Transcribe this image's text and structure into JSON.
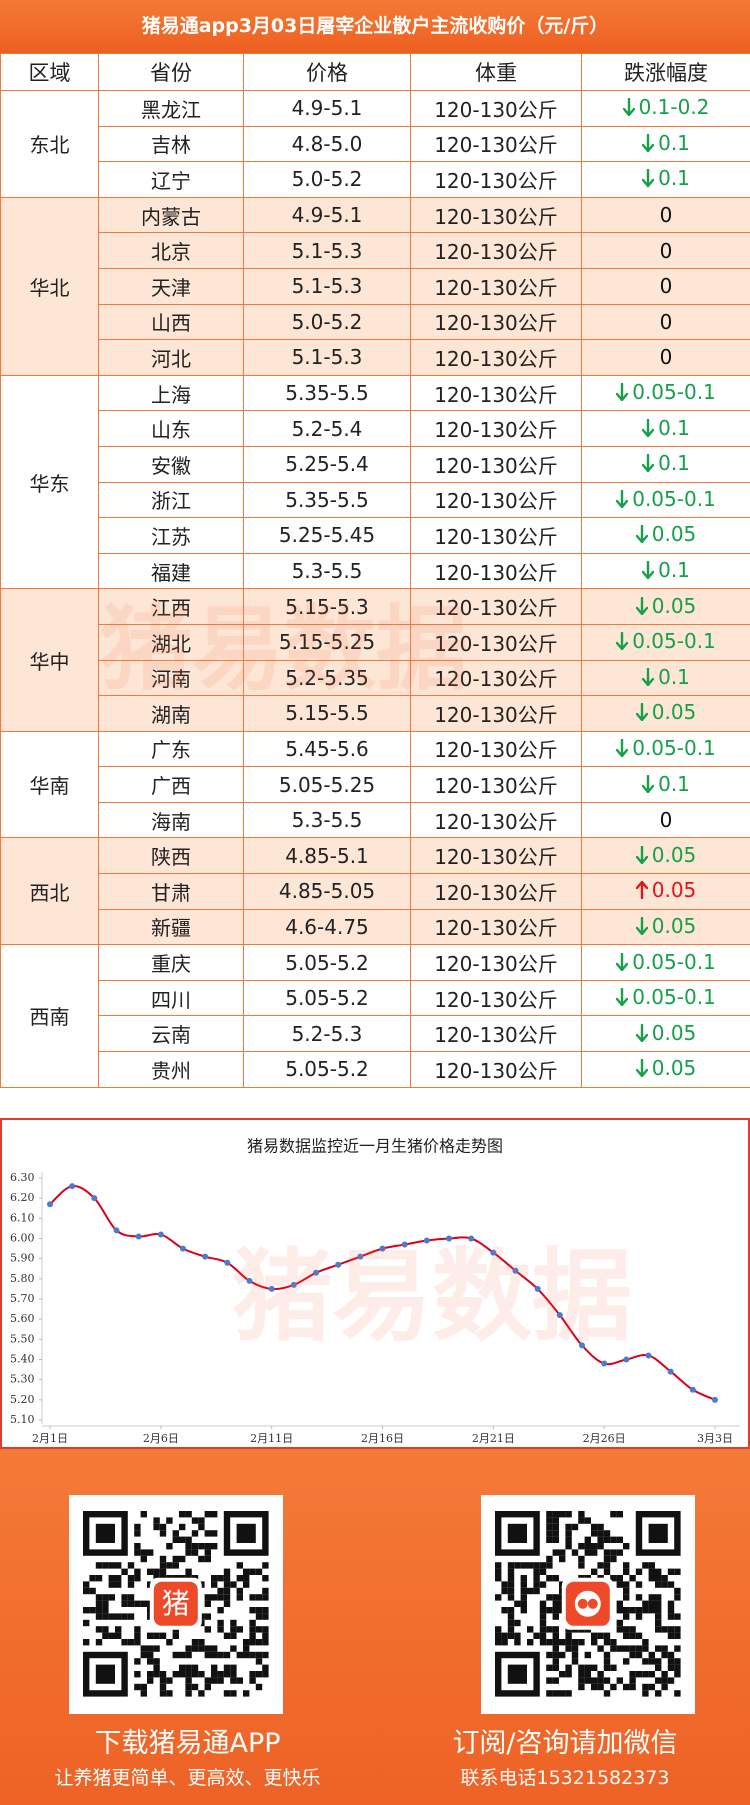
{
  "header": {
    "title": "猪易通app3月03日屠宰企业散户主流收购价（元/斤）"
  },
  "table": {
    "header": [
      "区域",
      "省份",
      "价格",
      "体重",
      "跌涨幅度"
    ],
    "regions": [
      {
        "name": "东北",
        "rows": [
          {
            "province": "黑龙江",
            "price": "4.9-5.1",
            "weight": "120-130公斤",
            "change": "0.1-0.2",
            "trend": "down"
          },
          {
            "province": "吉林",
            "price": "4.8-5.0",
            "weight": "120-130公斤",
            "change": "0.1",
            "trend": "down"
          },
          {
            "province": "辽宁",
            "price": "5.0-5.2",
            "weight": "120-130公斤",
            "change": "0.1",
            "trend": "down"
          }
        ]
      },
      {
        "name": "华北",
        "rows": [
          {
            "province": "内蒙古",
            "price": "4.9-5.1",
            "weight": "120-130公斤",
            "change": "0"
          },
          {
            "province": "北京",
            "price": "5.1-5.3",
            "weight": "120-130公斤",
            "change": "0"
          },
          {
            "province": "天津",
            "price": "5.1-5.3",
            "weight": "120-130公斤",
            "change": "0"
          },
          {
            "province": "山西",
            "price": "5.0-5.2",
            "weight": "120-130公斤",
            "change": "0"
          },
          {
            "province": "河北",
            "price": "5.1-5.3",
            "weight": "120-130公斤",
            "change": "0"
          }
        ]
      },
      {
        "name": "华东",
        "rows": [
          {
            "province": "上海",
            "price": "5.35-5.5",
            "weight": "120-130公斤",
            "change": "0.05-0.1",
            "trend": "down"
          },
          {
            "province": "山东",
            "price": "5.2-5.4",
            "weight": "120-130公斤",
            "change": "0.1",
            "trend": "down"
          },
          {
            "province": "安徽",
            "price": "5.25-5.4",
            "weight": "120-130公斤",
            "change": "0.1",
            "trend": "down"
          },
          {
            "province": "浙江",
            "price": "5.35-5.5",
            "weight": "120-130公斤",
            "change": "0.05-0.1",
            "trend": "down"
          },
          {
            "province": "江苏",
            "price": "5.25-5.45",
            "weight": "120-130公斤",
            "change": "0.05",
            "trend": "down"
          },
          {
            "province": "福建",
            "price": "5.3-5.5",
            "weight": "120-130公斤",
            "change": "0.1",
            "trend": "down"
          }
        ]
      },
      {
        "name": "华中",
        "rows": [
          {
            "province": "江西",
            "price": "5.15-5.3",
            "weight": "120-130公斤",
            "change": "0.05",
            "trend": "down"
          },
          {
            "province": "湖北",
            "price": "5.15-5.25",
            "weight": "120-130公斤",
            "change": "0.05-0.1",
            "trend": "down"
          },
          {
            "province": "河南",
            "price": "5.2-5.35",
            "weight": "120-130公斤",
            "change": "0.1",
            "trend": "down"
          },
          {
            "province": "湖南",
            "price": "5.15-5.5",
            "weight": "120-130公斤",
            "change": "0.05",
            "trend": "down"
          }
        ]
      },
      {
        "name": "华南",
        "rows": [
          {
            "province": "广东",
            "price": "5.45-5.6",
            "weight": "120-130公斤",
            "change": "0.05-0.1",
            "trend": "down"
          },
          {
            "province": "广西",
            "price": "5.05-5.25",
            "weight": "120-130公斤",
            "change": "0.1",
            "trend": "down"
          },
          {
            "province": "海南",
            "price": "5.3-5.5",
            "weight": "120-130公斤",
            "change": "0"
          }
        ]
      },
      {
        "name": "西北",
        "rows": [
          {
            "province": "陕西",
            "price": "4.85-5.1",
            "weight": "120-130公斤",
            "change": "0.05",
            "trend": "down"
          },
          {
            "province": "甘肃",
            "price": "4.85-5.05",
            "weight": "120-130公斤",
            "change": "0.05",
            "trend": "up"
          },
          {
            "province": "新疆",
            "price": "4.6-4.75",
            "weight": "120-130公斤",
            "change": "0.05",
            "trend": "down"
          }
        ]
      },
      {
        "name": "西南",
        "rows": [
          {
            "province": "重庆",
            "price": "5.05-5.2",
            "weight": "120-130公斤",
            "change": "0.05-0.1",
            "trend": "down"
          },
          {
            "province": "四川",
            "price": "5.05-5.2",
            "weight": "120-130公斤",
            "change": "0.05-0.1",
            "trend": "down"
          },
          {
            "province": "云南",
            "price": "5.2-5.3",
            "weight": "120-130公斤",
            "change": "0.05",
            "trend": "down"
          },
          {
            "province": "贵州",
            "price": "5.05-5.2",
            "weight": "120-130公斤",
            "change": "0.05",
            "trend": "down"
          }
        ]
      }
    ]
  },
  "watermark": "猪易数据",
  "chart_data": {
    "type": "line",
    "title": "猪易数据监控近一月生猪价格走势图",
    "categories": [
      "2月1日",
      null,
      null,
      null,
      null,
      "2月6日",
      null,
      null,
      null,
      null,
      "2月11日",
      null,
      null,
      null,
      null,
      "2月16日",
      null,
      null,
      null,
      null,
      "2月21日",
      null,
      null,
      null,
      null,
      "2月26日",
      null,
      null,
      null,
      null,
      "3月3日"
    ],
    "values": [
      6.17,
      6.26,
      6.2,
      6.04,
      6.01,
      6.02,
      5.95,
      5.91,
      5.88,
      5.79,
      5.75,
      5.77,
      5.83,
      5.87,
      5.91,
      5.95,
      5.97,
      5.99,
      6.0,
      6.0,
      5.93,
      5.84,
      5.75,
      5.62,
      5.47,
      5.38,
      5.4,
      5.42,
      5.34,
      5.25,
      5.2
    ],
    "color": "#d9001b",
    "marker_color": "#4a7bd0",
    "ylim": [
      5.1,
      6.3
    ],
    "yticks": [
      {
        "value": 5.1,
        "label": "5.10"
      },
      {
        "value": 5.2,
        "label": "5.20"
      },
      {
        "value": 5.3,
        "label": "5.30"
      },
      {
        "value": 5.4,
        "label": "5.40"
      },
      {
        "value": 5.5,
        "label": "5.50"
      },
      {
        "value": 5.6,
        "label": "5.60"
      },
      {
        "value": 5.7,
        "label": "5.70"
      },
      {
        "value": 5.8,
        "label": "5.80"
      },
      {
        "value": 5.9,
        "label": "5.90"
      },
      {
        "value": 6.0,
        "label": "6.00"
      },
      {
        "value": 6.1,
        "label": "6.10"
      },
      {
        "value": 6.2,
        "label": "6.20"
      },
      {
        "value": 6.3,
        "label": "6.30"
      }
    ]
  },
  "footer": {
    "left": {
      "qr_label": "猪",
      "title": "下载猪易通APP",
      "subtitle": "让养猪更简单、更高效、更快乐"
    },
    "right": {
      "title": "订阅/咨询请加微信",
      "subtitle": "联系电话15321582373"
    }
  }
}
